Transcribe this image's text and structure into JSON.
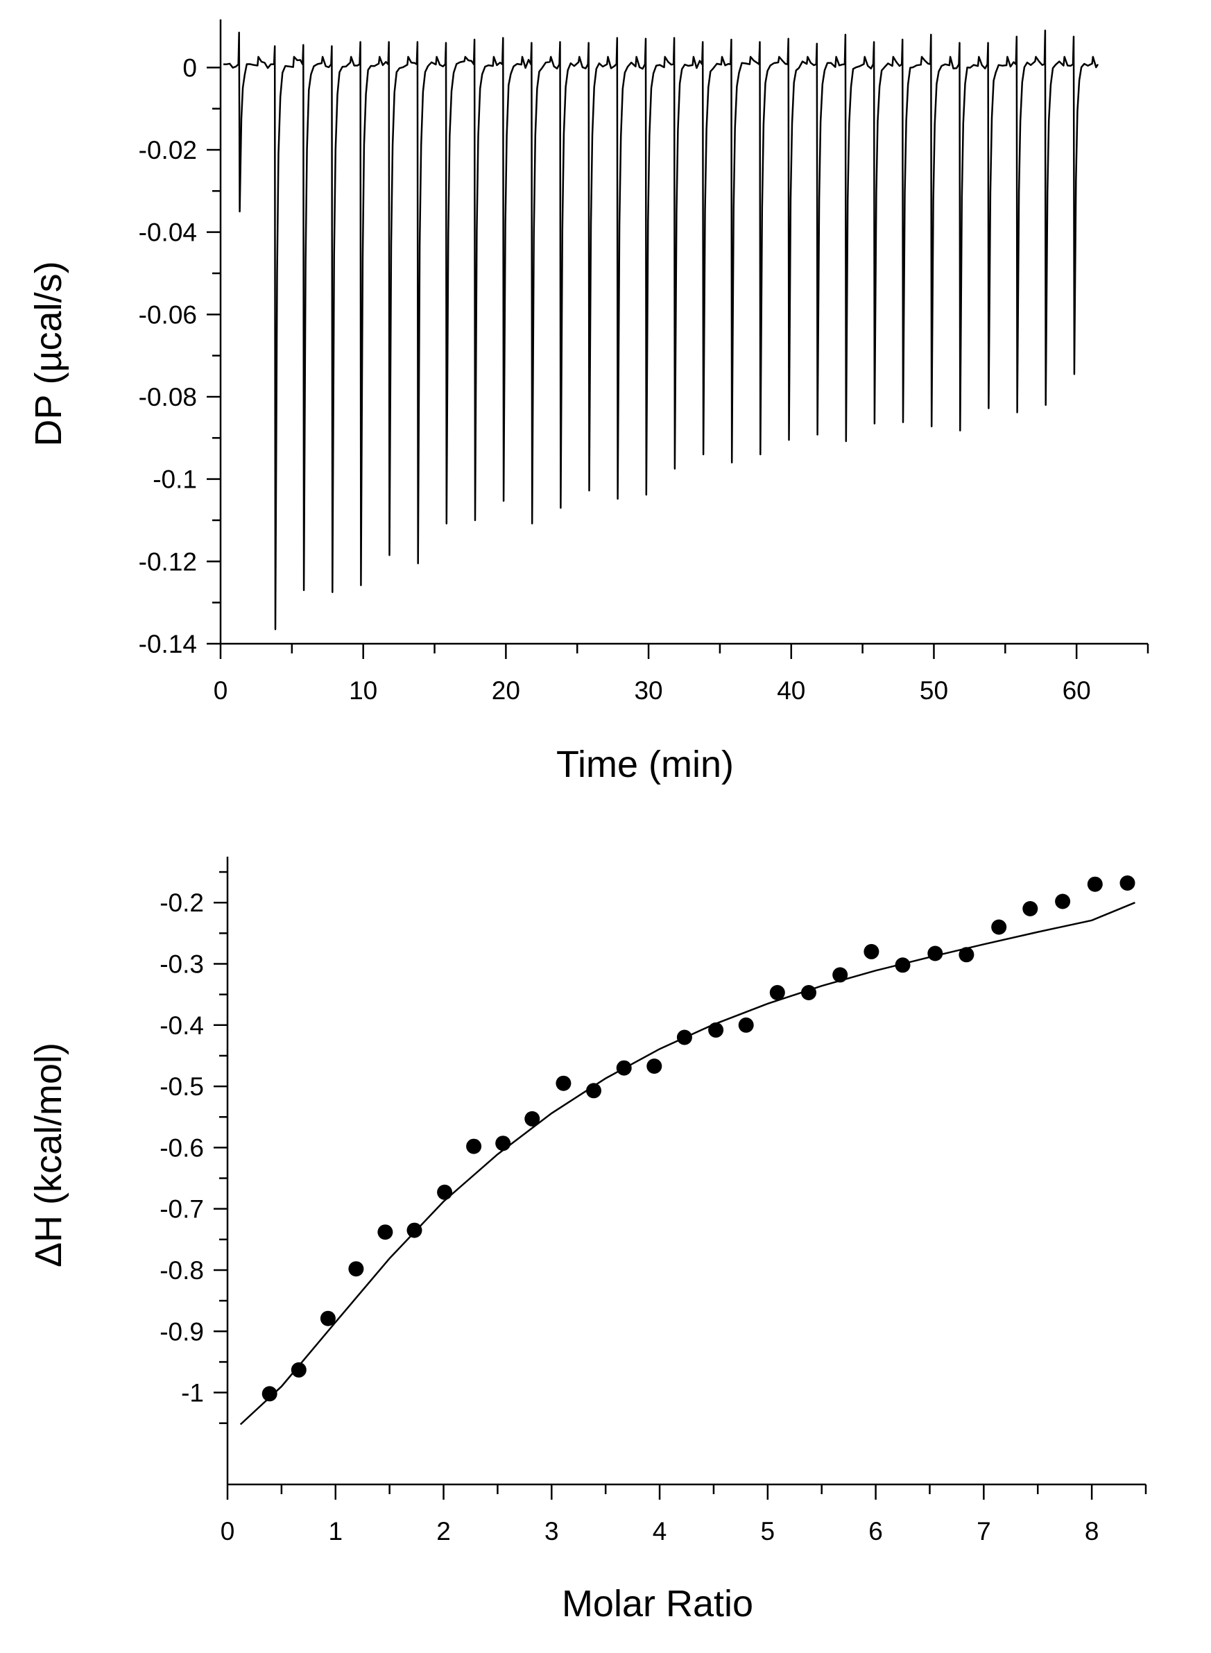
{
  "chart_data": [
    {
      "type": "line",
      "title": "",
      "xlabel": "Time (min)",
      "ylabel": "DP (µcal/s)",
      "xlim": [
        0,
        65
      ],
      "ylim": [
        -0.14,
        0.01
      ],
      "x_ticks": [
        0,
        10,
        20,
        30,
        40,
        50,
        60
      ],
      "x_tick_labels": [
        "0",
        "10",
        "20",
        "30",
        "40",
        "50",
        "60"
      ],
      "y_ticks": [
        0,
        -0.02,
        -0.04,
        -0.06,
        -0.08,
        -0.1,
        -0.12,
        -0.14
      ],
      "y_tick_labels": [
        "0",
        "-0.02",
        "-0.04",
        "-0.06",
        "-0.08",
        "-0.1",
        "-0.12",
        "-0.14"
      ],
      "grid": false,
      "baseline": 0.0008,
      "trace_end": 61.5,
      "injections": {
        "times": [
          1.3,
          3.8,
          5.8,
          7.8,
          9.8,
          11.8,
          13.8,
          15.8,
          17.8,
          19.8,
          21.8,
          23.8,
          25.8,
          27.8,
          29.8,
          31.8,
          33.8,
          35.8,
          37.8,
          39.8,
          41.8,
          43.8,
          45.8,
          47.8,
          49.8,
          51.8,
          53.8,
          55.8,
          57.8,
          59.8
        ],
        "minima": [
          -0.035,
          -0.1365,
          -0.127,
          -0.1275,
          -0.1258,
          -0.1185,
          -0.1205,
          -0.1108,
          -0.11,
          -0.1053,
          -0.1108,
          -0.107,
          -0.1028,
          -0.1048,
          -0.1038,
          -0.0975,
          -0.094,
          -0.096,
          -0.094,
          -0.0905,
          -0.0892,
          -0.0908,
          -0.0865,
          -0.0862,
          -0.0872,
          -0.0882,
          -0.0828,
          -0.0838,
          -0.082,
          -0.0745
        ],
        "spike_maxima": [
          0.0085,
          0.0052,
          0.0055,
          0.0052,
          0.0062,
          0.0062,
          0.0062,
          0.006,
          0.0068,
          0.0072,
          0.006,
          0.0062,
          0.006,
          0.0072,
          0.007,
          0.0072,
          0.0062,
          0.0068,
          0.0062,
          0.007,
          0.0058,
          0.008,
          0.0062,
          0.0068,
          0.008,
          0.006,
          0.006,
          0.0075,
          0.009,
          0.0075
        ]
      }
    },
    {
      "type": "scatter",
      "title": "",
      "xlabel": "Molar Ratio",
      "ylabel": "ΔH (kcal/mol)",
      "xlim": [
        0,
        8.5
      ],
      "ylim": [
        -1.15,
        -0.125
      ],
      "x_ticks": [
        0,
        1,
        2,
        3,
        4,
        5,
        6,
        7,
        8
      ],
      "x_tick_labels": [
        "0",
        "1",
        "2",
        "3",
        "4",
        "5",
        "6",
        "7",
        "8"
      ],
      "y_ticks": [
        -0.2,
        -0.3,
        -0.4,
        -0.5,
        -0.6,
        -0.7,
        -0.8,
        -0.9,
        -1
      ],
      "y_tick_labels": [
        "-0.2",
        "-0.3",
        "-0.4",
        "-0.5",
        "-0.6",
        "-0.7",
        "-0.8",
        "-0.9",
        "-1"
      ],
      "grid": false,
      "points": {
        "x": [
          0.39,
          0.66,
          0.93,
          1.19,
          1.46,
          1.73,
          2.01,
          2.28,
          2.55,
          2.82,
          3.11,
          3.39,
          3.67,
          3.95,
          4.23,
          4.52,
          4.8,
          5.09,
          5.38,
          5.67,
          5.96,
          6.25,
          6.55,
          6.84,
          7.14,
          7.43,
          7.73,
          8.03,
          8.33
        ],
        "y": [
          -1.002,
          -0.963,
          -0.879,
          -0.798,
          -0.738,
          -0.735,
          -0.673,
          -0.598,
          -0.593,
          -0.553,
          -0.495,
          -0.507,
          -0.47,
          -0.467,
          -0.42,
          -0.408,
          -0.4,
          -0.347,
          -0.347,
          -0.318,
          -0.28,
          -0.302,
          -0.283,
          -0.285,
          -0.24,
          -0.21,
          -0.198,
          -0.17,
          -0.168
        ]
      },
      "fit": {
        "x": [
          0.12,
          0.5,
          1.0,
          1.5,
          2.0,
          2.5,
          3.0,
          3.5,
          4.0,
          4.5,
          5.0,
          5.5,
          6.0,
          6.5,
          7.0,
          7.5,
          8.0,
          8.4
        ],
        "y": [
          -1.052,
          -0.99,
          -0.885,
          -0.781,
          -0.688,
          -0.611,
          -0.544,
          -0.487,
          -0.439,
          -0.399,
          -0.365,
          -0.336,
          -0.311,
          -0.289,
          -0.268,
          -0.248,
          -0.229,
          -0.2
        ]
      }
    }
  ]
}
